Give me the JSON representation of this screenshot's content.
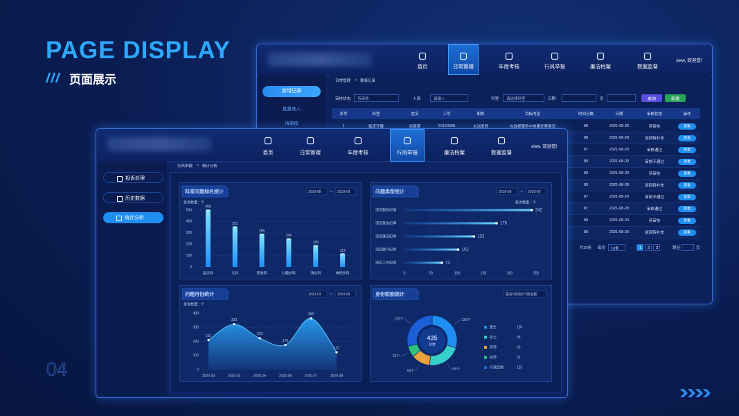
{
  "header": {
    "title": "PAGE DISPLAY",
    "subtitle": "页面展示",
    "page_number": "04"
  },
  "back_window": {
    "nav": [
      "首页",
      "日常管理",
      "年度考核",
      "行风举报",
      "廉洁档案",
      "数据监督"
    ],
    "active": 1,
    "user": "xiew, 欢迎您!",
    "sidebar": {
      "button": "新增记录",
      "links": [
        "批量录入",
        "待审核"
      ]
    },
    "breadcrumb": [
      "日常管理",
      ">",
      "敬事记录"
    ],
    "filters": {
      "status_label": "审核状态:",
      "status_value": "待审核",
      "person_label": "人员:",
      "person_value": "请输入",
      "dept_label": "科室:",
      "dept_value": "请选择科室",
      "date_label": "日期:",
      "date_sep": "至"
    },
    "buttons": [
      "查询",
      "新增"
    ],
    "table": {
      "headers": [
        "序号",
        "科室",
        "姓名",
        "工号",
        "职称",
        "目标内容",
        "时间分数",
        "日期",
        "审核状态",
        "操作"
      ],
      "rows": [
        [
          1,
          "临床开展",
          "尚某某",
          20123068,
          "主治医师",
          "在选择服务中效果优秀情况",
          89,
          "2021-08-20",
          "待审核",
          "查看"
        ],
        [
          null,
          null,
          null,
          null,
          null,
          null,
          89,
          "2021-08-20",
          "驳回待补充",
          "查看"
        ],
        [
          null,
          null,
          null,
          null,
          null,
          null,
          87,
          "2021-08-20",
          "审核通过",
          "查看"
        ],
        [
          null,
          null,
          null,
          null,
          null,
          null,
          89,
          "2021-08-20",
          "审核不通过",
          "查看"
        ],
        [
          null,
          null,
          null,
          null,
          null,
          null,
          89,
          "2021-08-20",
          "待审核",
          "查看"
        ],
        [
          null,
          null,
          null,
          null,
          null,
          null,
          89,
          "2021-08-20",
          "驳回待补充",
          "查看"
        ],
        [
          null,
          null,
          null,
          null,
          null,
          null,
          87,
          "2021-08-20",
          "审核不通过",
          "查看"
        ],
        [
          null,
          null,
          null,
          null,
          null,
          null,
          87,
          "2021-08-20",
          "审核通过",
          "查看"
        ],
        [
          null,
          null,
          null,
          null,
          null,
          null,
          89,
          "2021-08-20",
          "待审核",
          "查看"
        ],
        [
          null,
          null,
          null,
          null,
          null,
          null,
          89,
          "2021-08-20",
          "驳回待补充",
          "查看"
        ]
      ]
    },
    "pagination": {
      "total": "共30条",
      "per_page": "每页",
      "size": "10条",
      "pages": [
        1,
        2,
        3
      ],
      "jump": "跳至",
      "unit": "页"
    }
  },
  "front_window": {
    "nav": [
      "首页",
      "日常管理",
      "年度考核",
      "行风举报",
      "廉洁档案",
      "数据监督"
    ],
    "active": 3,
    "user": "xiew, 欢迎您!",
    "sidebar": [
      "投诉处理",
      "历史数据",
      "统计分析"
    ],
    "sidebar_active": 2,
    "breadcrumb": [
      "行风举报",
      ">",
      "统计分析"
    ]
  },
  "chart_data": [
    {
      "type": "bar",
      "title": "科室问题排名统计",
      "filters": [
        "2018-08",
        "~",
        "2018-09"
      ],
      "y_label": "投诉数量：个",
      "categories": [
        "急诊科",
        "儿科",
        "影像科",
        "心胸外科",
        "消化科",
        "神经外科"
      ],
      "values": [
        498,
        351,
        286,
        245,
        185,
        113
      ],
      "color": "#1e90ff",
      "ylim": [
        0,
        500
      ],
      "yticks": [
        0,
        100,
        200,
        300,
        400,
        500
      ]
    },
    {
      "type": "hbar",
      "title": "问题类型统计",
      "filters": [
        "2018-08",
        "~",
        "2018-09"
      ],
      "x_label": "投诉数量：个",
      "categories": [
        "违反服务纪律",
        "违反政治纪律",
        "违反廉洁纪律",
        "违反群众纪律",
        "违反工作纪律"
      ],
      "values": [
        242,
        175,
        132,
        102,
        71
      ],
      "color": "#1e90ff",
      "xlim": [
        0,
        250
      ],
      "xticks": [
        0,
        50,
        100,
        150,
        200,
        250
      ]
    },
    {
      "type": "area",
      "title": "问题月份统计",
      "filters": [
        "2020-03",
        "~",
        "2020-06"
      ],
      "y_label": "投诉数量：个",
      "categories": [
        "2020-03",
        "2020-04",
        "2020-05",
        "2020-06",
        "2020-07",
        "2020-08"
      ],
      "values": [
        210,
        323,
        223,
        175,
        365,
        123
      ],
      "color": "#2a9df4",
      "ylim": [
        0,
        400
      ],
      "yticks": [
        0,
        100,
        200,
        300,
        400
      ]
    },
    {
      "type": "pie",
      "title": "身份职能统计",
      "filters": [
        "医/护/药/技/行政后勤"
      ],
      "total": 435,
      "total_label": "总数",
      "categories": [
        "医生",
        "护士",
        "药师",
        "技师",
        "行政后勤"
      ],
      "values": [
        130,
        95,
        53,
        32,
        125
      ],
      "value_labels": [
        "130个",
        "95个",
        "53个",
        "32个",
        "125个"
      ],
      "colors": [
        "#1f8ef1",
        "#36cfc9",
        "#e8a23c",
        "#2ec27e",
        "#1c5fd6"
      ]
    }
  ]
}
